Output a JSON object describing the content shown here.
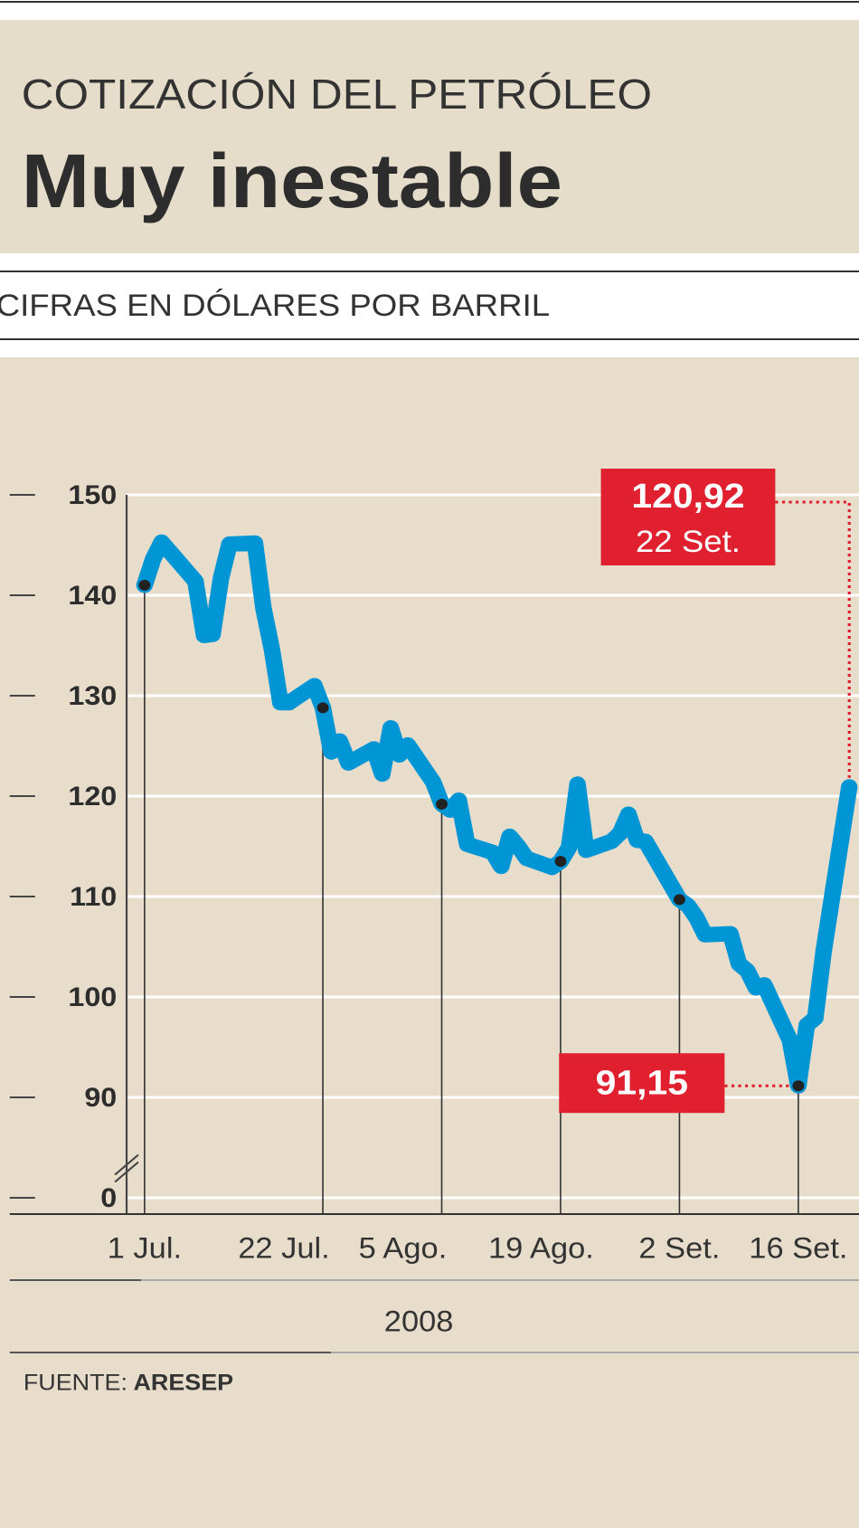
{
  "chart_data": {
    "type": "line",
    "supertitle": "COTIZACIÓN DEL PETRÓLEO",
    "title": "Muy inestable",
    "subtitle": "CIFRAS EN DÓLARES POR BARRIL",
    "x_label": "2008",
    "source_label": "FUENTE:",
    "source": "ARESEP",
    "color": "#0096d6",
    "x": [
      "2008-07-01",
      "2008-07-02",
      "2008-07-03",
      "2008-07-07",
      "2008-07-08",
      "2008-07-09",
      "2008-07-10",
      "2008-07-11",
      "2008-07-14",
      "2008-07-15",
      "2008-07-16",
      "2008-07-17",
      "2008-07-18",
      "2008-07-21",
      "2008-07-22",
      "2008-07-23",
      "2008-07-24",
      "2008-07-25",
      "2008-07-28",
      "2008-07-29",
      "2008-07-30",
      "2008-07-31",
      "2008-08-01",
      "2008-08-04",
      "2008-08-05",
      "2008-08-06",
      "2008-08-07",
      "2008-08-08",
      "2008-08-11",
      "2008-08-12",
      "2008-08-13",
      "2008-08-14",
      "2008-08-15",
      "2008-08-18",
      "2008-08-19",
      "2008-08-20",
      "2008-08-21",
      "2008-08-22",
      "2008-08-25",
      "2008-08-26",
      "2008-08-27",
      "2008-08-28",
      "2008-08-29",
      "2008-09-02",
      "2008-09-03",
      "2008-09-04",
      "2008-09-05",
      "2008-09-08",
      "2008-09-09",
      "2008-09-10",
      "2008-09-11",
      "2008-09-12",
      "2008-09-15",
      "2008-09-16",
      "2008-09-17",
      "2008-09-18",
      "2008-09-19",
      "2008-09-22"
    ],
    "values": [
      141.0,
      143.6,
      145.3,
      141.4,
      136.0,
      136.1,
      141.7,
      145.1,
      145.2,
      138.7,
      134.6,
      129.3,
      129.3,
      131.0,
      128.8,
      124.4,
      125.5,
      123.3,
      124.7,
      122.2,
      126.8,
      124.1,
      125.1,
      121.4,
      119.2,
      118.6,
      119.6,
      115.2,
      114.4,
      113.0,
      116.0,
      115.0,
      113.8,
      112.9,
      113.5,
      114.9,
      121.2,
      114.6,
      115.5,
      116.3,
      118.2,
      115.6,
      115.5,
      109.7,
      109.1,
      107.9,
      106.2,
      106.3,
      103.3,
      102.6,
      100.9,
      101.2,
      95.7,
      91.15,
      97.2,
      97.9,
      104.6,
      120.92
    ],
    "xlim": [
      "2008-06-29",
      "2008-09-22"
    ],
    "xticks": [
      {
        "value": "2008-07-01",
        "label": "1 Jul."
      },
      {
        "value": "2008-07-22",
        "label": "22 Jul."
      },
      {
        "value": "2008-08-05",
        "label": "5 Ago."
      },
      {
        "value": "2008-08-19",
        "label": "19 Ago."
      },
      {
        "value": "2008-09-02",
        "label": "2 Set."
      },
      {
        "value": "2008-09-16",
        "label": "16 Set."
      }
    ],
    "ylim": [
      0,
      150
    ],
    "yticks": [
      0,
      90,
      100,
      110,
      120,
      130,
      140,
      150
    ],
    "axis_break": true,
    "grid": true,
    "highlights": [
      {
        "x": "2008-09-22",
        "value_label": "120,92",
        "date_label": "22 Set."
      },
      {
        "x": "2008-09-16",
        "value_label": "91,15"
      }
    ]
  }
}
